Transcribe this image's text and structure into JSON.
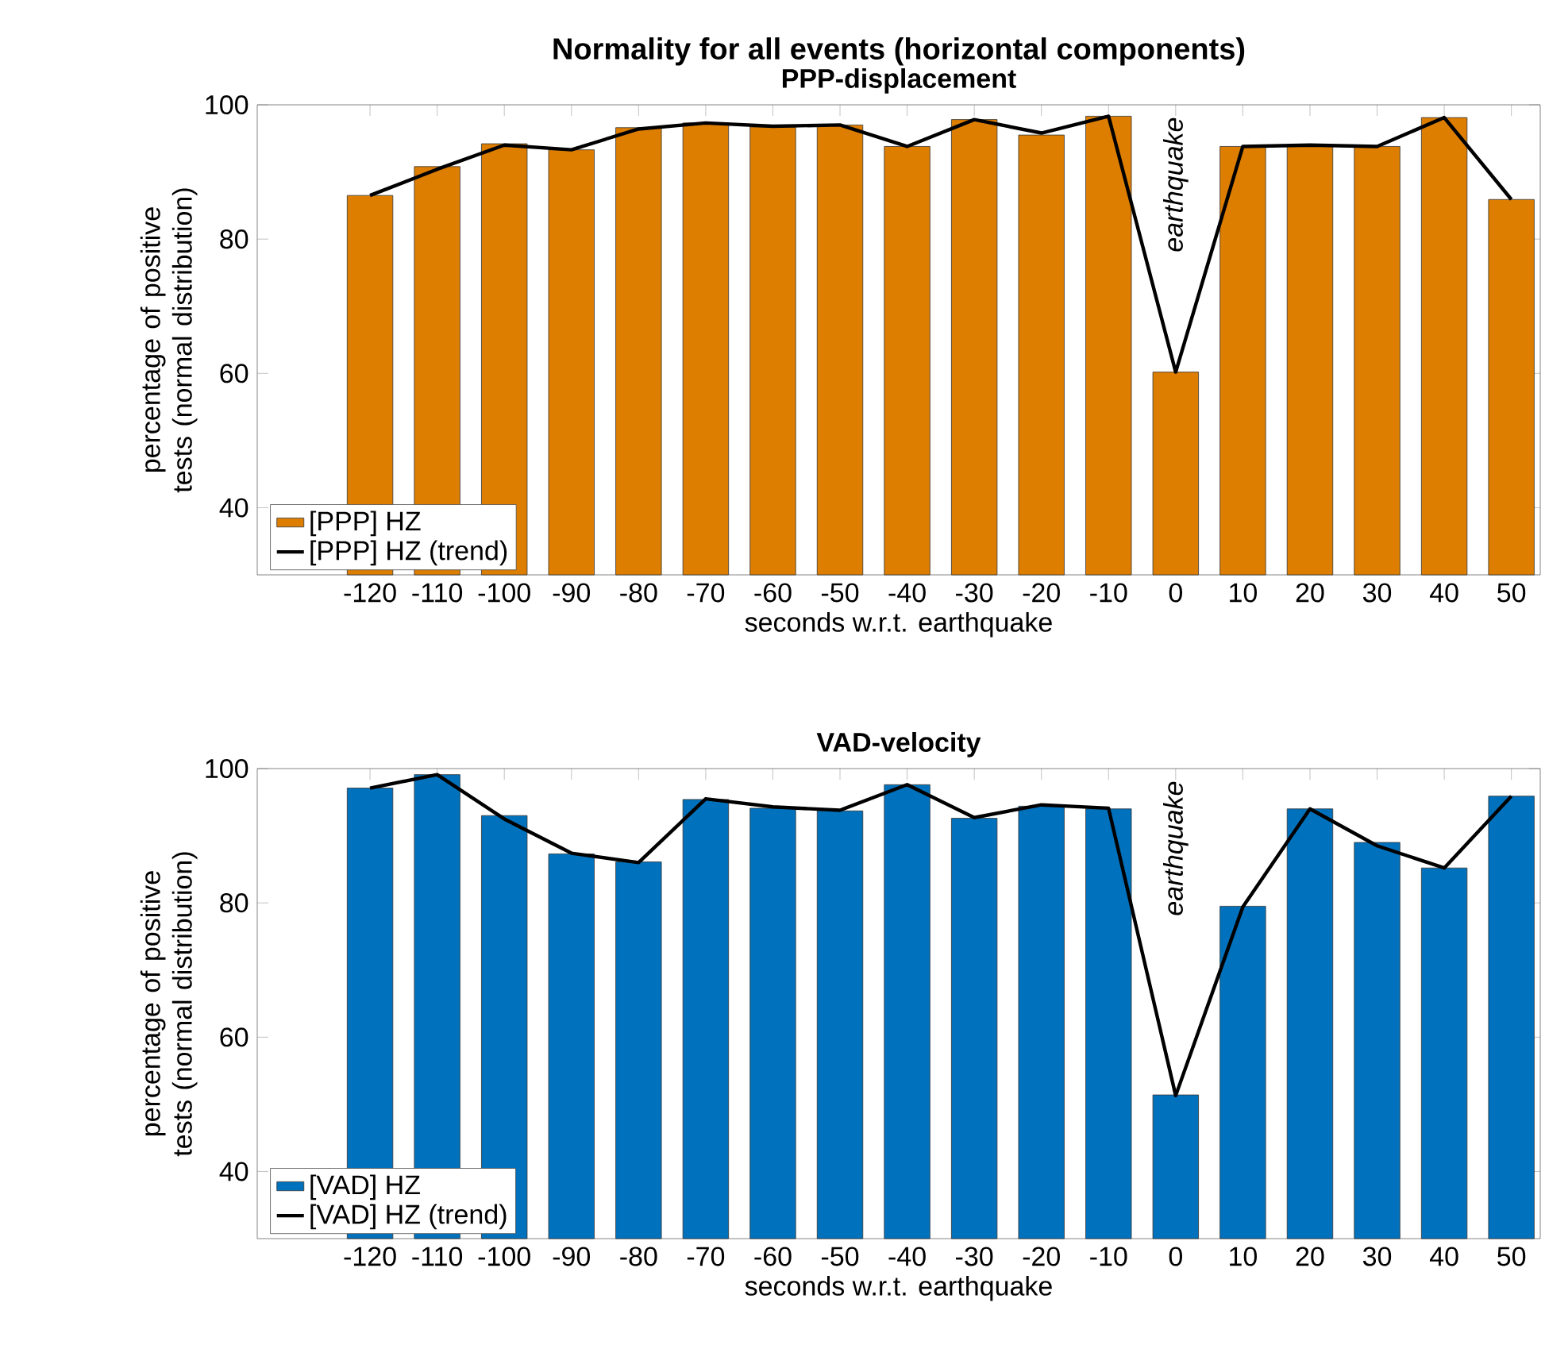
{
  "chart_data": [
    {
      "type": "bar",
      "title": "Normality for all events (horizontal components)",
      "subtitle": "PPP-displacement",
      "xlabel": "seconds w.r.t. earthquake",
      "ylabel": "percentage of positive tests (normal distribution)",
      "categories": [
        "-120",
        "-110",
        "-100",
        "-90",
        "-80",
        "-70",
        "-60",
        "-50",
        "-40",
        "-30",
        "-20",
        "-10",
        "0",
        "10",
        "20",
        "30",
        "40",
        "50"
      ],
      "series": [
        {
          "name": "[PPP] HZ",
          "type": "bar",
          "color": "#dd7e00",
          "values": [
            86.5,
            90.8,
            94.2,
            93.3,
            96.6,
            97.3,
            96.7,
            97.0,
            93.8,
            97.8,
            95.5,
            98.3,
            60.2,
            93.8,
            93.9,
            93.8,
            98.1,
            85.9
          ]
        },
        {
          "name": "[PPP] HZ (trend)",
          "type": "line",
          "color": "#000000",
          "values": [
            86.5,
            90.4,
            94.0,
            93.3,
            96.4,
            97.3,
            96.8,
            97.0,
            93.8,
            97.8,
            95.8,
            98.3,
            60.2,
            93.8,
            94.0,
            93.8,
            98.1,
            85.9
          ]
        }
      ],
      "ylim": [
        30,
        100
      ],
      "yticks": [
        40,
        60,
        80,
        100
      ],
      "legend": "bottom left",
      "annotations": [
        "earthquake"
      ]
    },
    {
      "type": "bar",
      "title": "VAD-velocity",
      "xlabel": "seconds w.r.t. earthquake",
      "ylabel": "percentage of positive tests (normal distribution)",
      "categories": [
        "-120",
        "-110",
        "-100",
        "-90",
        "-80",
        "-70",
        "-60",
        "-50",
        "-40",
        "-30",
        "-20",
        "-10",
        "0",
        "10",
        "20",
        "30",
        "40",
        "50"
      ],
      "series": [
        {
          "name": "[VAD] HZ",
          "type": "bar",
          "color": "#0072bd",
          "values": [
            97.1,
            99.1,
            93.0,
            87.3,
            86.1,
            95.4,
            94.1,
            93.7,
            97.6,
            92.6,
            94.4,
            94.0,
            51.4,
            79.5,
            94.0,
            89.0,
            85.2,
            95.9
          ]
        },
        {
          "name": "[VAD] HZ (trend)",
          "type": "line",
          "color": "#000000",
          "values": [
            97.1,
            99.1,
            92.5,
            87.4,
            86.0,
            95.5,
            94.3,
            93.8,
            97.6,
            92.7,
            94.6,
            94.1,
            51.3,
            79.4,
            94.0,
            88.5,
            85.2,
            95.9
          ]
        }
      ],
      "ylim": [
        30,
        100
      ],
      "yticks": [
        40,
        60,
        80,
        100
      ],
      "legend": "bottom left",
      "annotations": [
        "earthquake"
      ]
    }
  ]
}
